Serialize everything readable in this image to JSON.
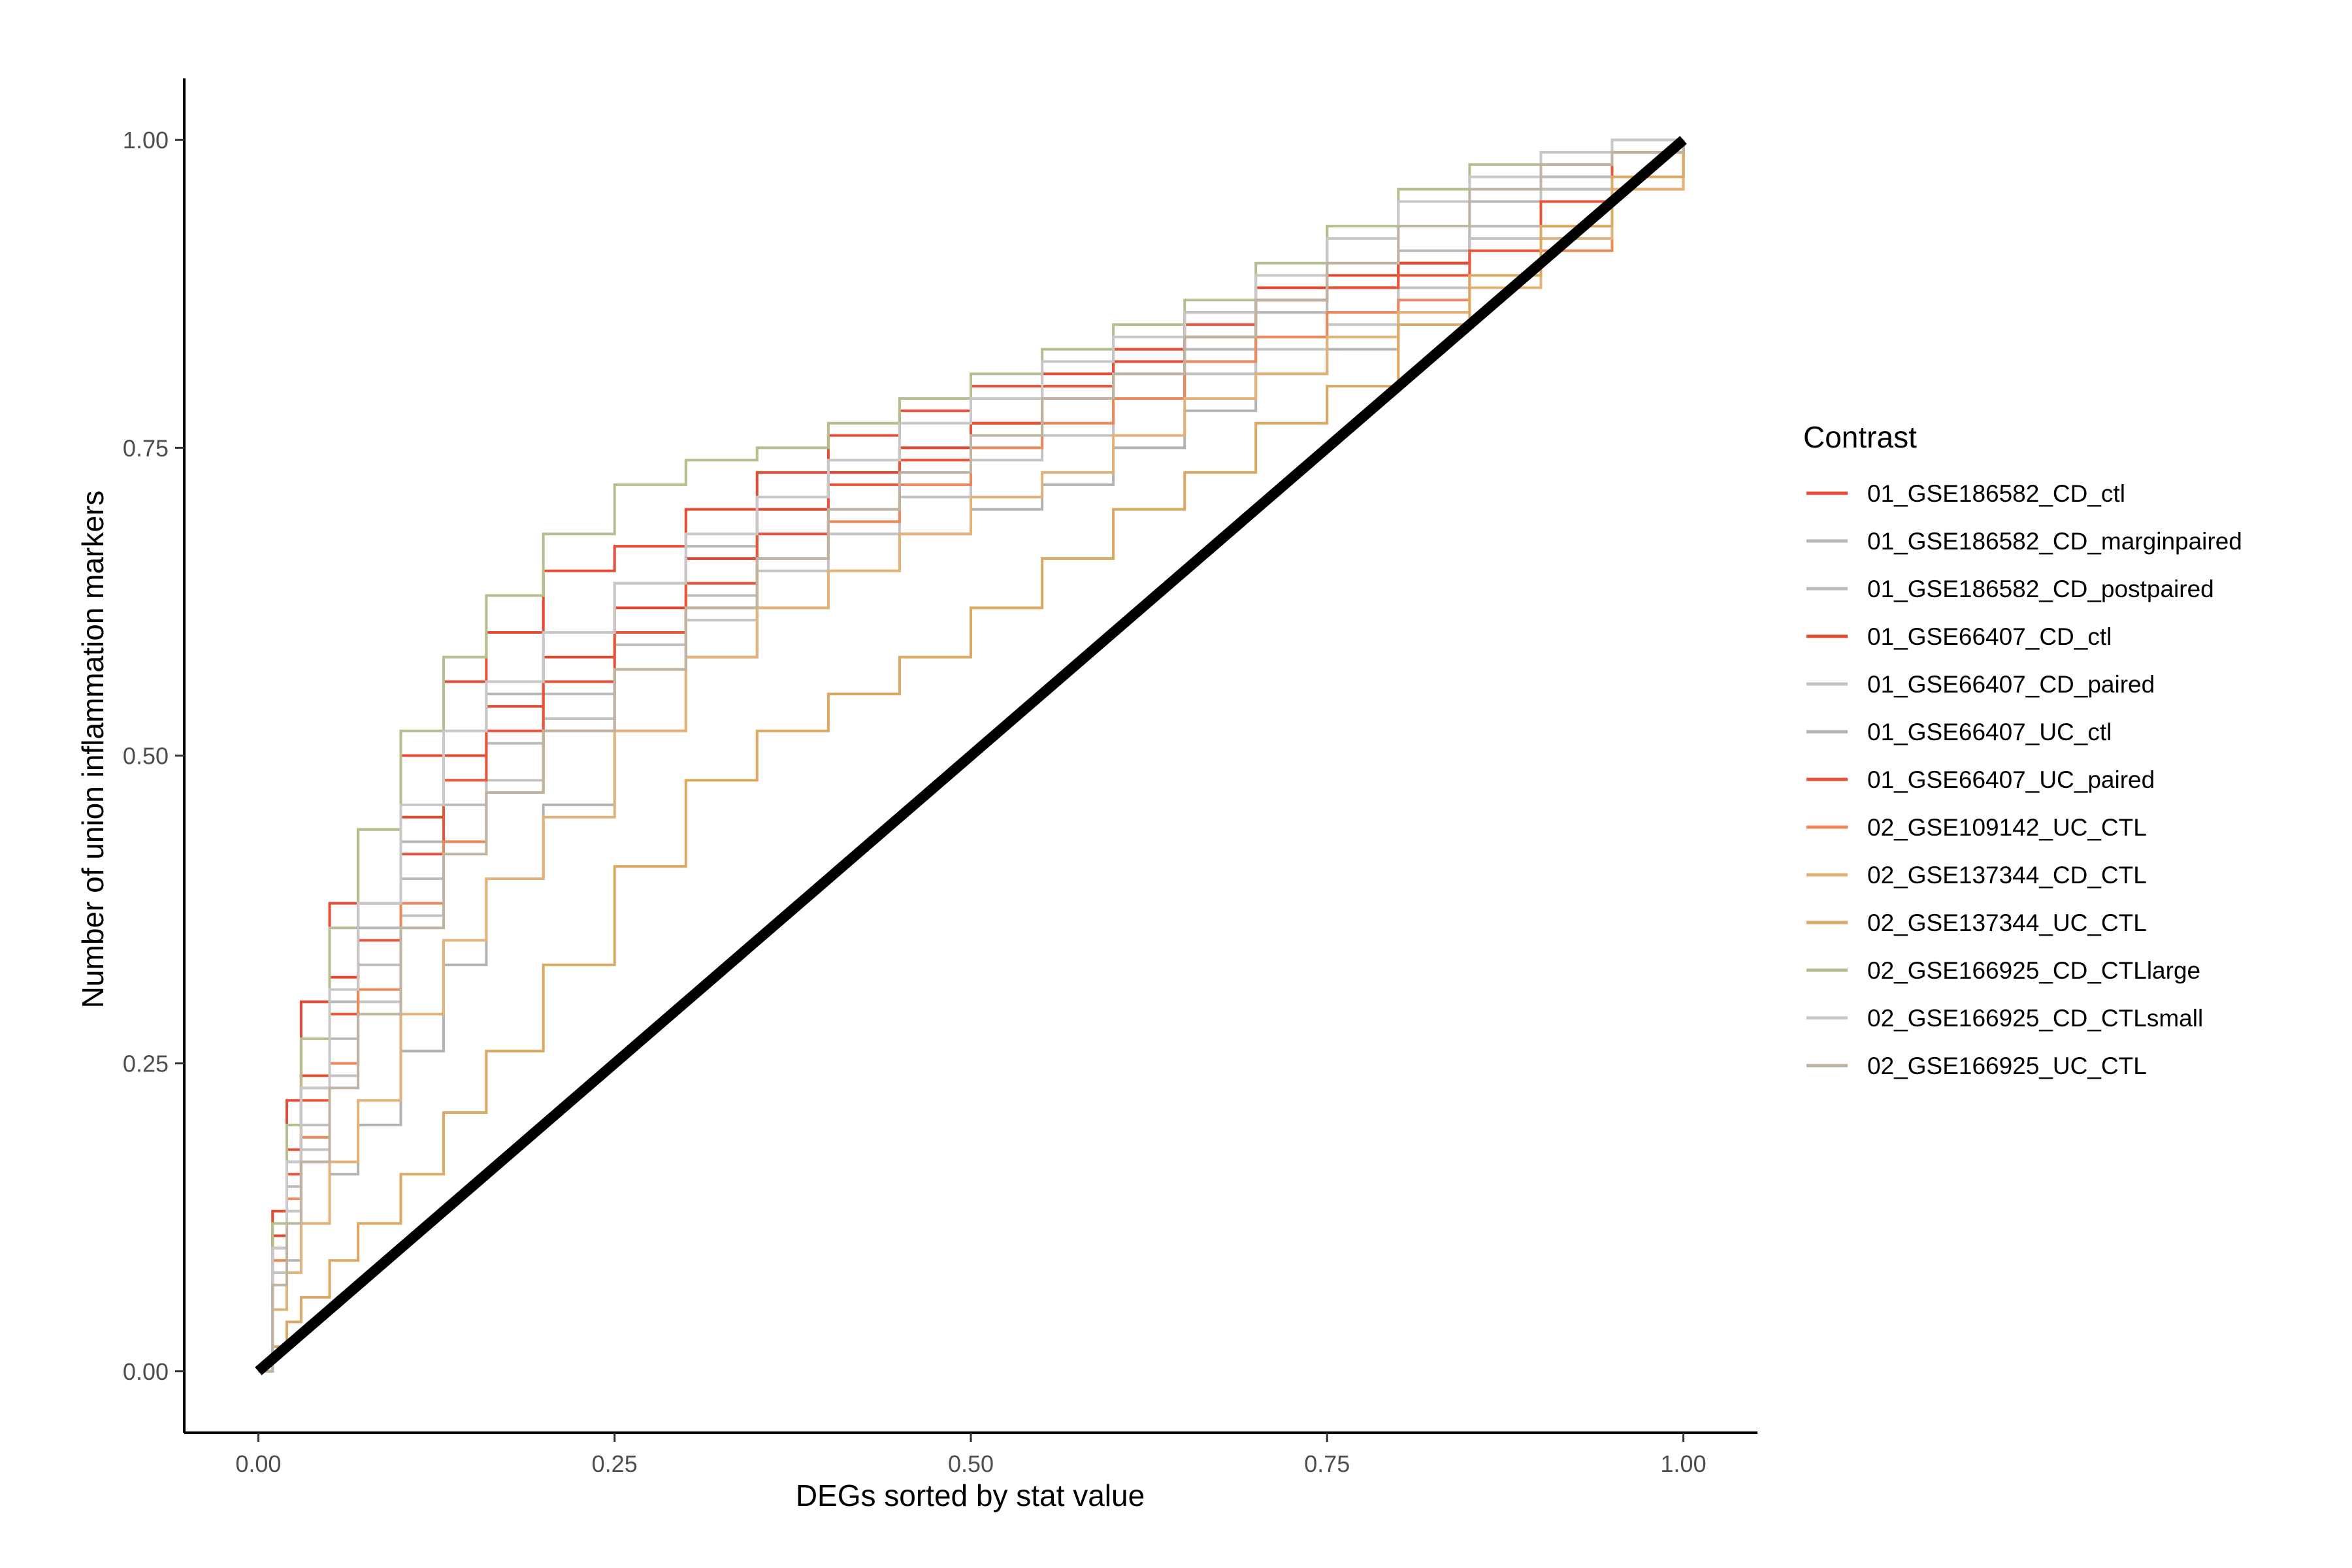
{
  "chart_data": {
    "type": "line",
    "title": "",
    "xlabel": "DEGs sorted by stat value",
    "ylabel": "Number of union inflammation markers",
    "xlim": [
      -0.052,
      1.052
    ],
    "ylim": [
      -0.05,
      1.05
    ],
    "x_ticks": [
      0,
      0.25,
      0.5,
      0.75,
      1
    ],
    "x_tick_labels": [
      "0.00",
      "0.25",
      "0.50",
      "0.75",
      "1.00"
    ],
    "y_ticks": [
      0,
      0.25,
      0.5,
      0.75,
      1
    ],
    "y_tick_labels": [
      "0.00",
      "0.25",
      "0.50",
      "0.75",
      "1.00"
    ],
    "grid": false,
    "legend": {
      "title": "Contrast",
      "position": "right"
    },
    "reference_line": {
      "x": [
        0,
        1
      ],
      "y": [
        0,
        1
      ],
      "color": "#000000"
    },
    "series": [
      {
        "name": "01_GSE186582_CD_ctl",
        "color": "#e64b35",
        "x": [
          0,
          0.01,
          0.02,
          0.03,
          0.05,
          0.07,
          0.1,
          0.13,
          0.16,
          0.2,
          0.25,
          0.3,
          0.35,
          0.4,
          0.45,
          0.5,
          0.55,
          0.6,
          0.65,
          0.7,
          0.75,
          0.8,
          0.85,
          0.9,
          0.95,
          1
        ],
        "y": [
          0,
          0.13,
          0.22,
          0.3,
          0.38,
          0.44,
          0.5,
          0.56,
          0.6,
          0.65,
          0.67,
          0.7,
          0.73,
          0.76,
          0.78,
          0.8,
          0.81,
          0.82,
          0.84,
          0.87,
          0.88,
          0.9,
          0.93,
          0.97,
          0.99,
          1
        ]
      },
      {
        "name": "01_GSE186582_CD_marginpaired",
        "color": "#b8b8b8",
        "x": [
          0,
          0.01,
          0.02,
          0.03,
          0.05,
          0.07,
          0.1,
          0.13,
          0.16,
          0.2,
          0.25,
          0.3,
          0.35,
          0.4,
          0.45,
          0.5,
          0.55,
          0.6,
          0.65,
          0.7,
          0.75,
          0.8,
          0.85,
          0.9,
          0.95,
          1
        ],
        "y": [
          0,
          0.1,
          0.17,
          0.23,
          0.3,
          0.36,
          0.43,
          0.5,
          0.55,
          0.6,
          0.64,
          0.67,
          0.7,
          0.73,
          0.75,
          0.77,
          0.79,
          0.81,
          0.83,
          0.86,
          0.88,
          0.91,
          0.95,
          0.98,
          0.99,
          1
        ]
      },
      {
        "name": "01_GSE186582_CD_postpaired",
        "color": "#bdbdbd",
        "x": [
          0,
          0.01,
          0.02,
          0.03,
          0.05,
          0.07,
          0.1,
          0.13,
          0.16,
          0.2,
          0.25,
          0.3,
          0.35,
          0.4,
          0.45,
          0.5,
          0.55,
          0.6,
          0.65,
          0.7,
          0.75,
          0.8,
          0.85,
          0.9,
          0.95,
          1
        ],
        "y": [
          0,
          0.09,
          0.15,
          0.2,
          0.27,
          0.33,
          0.4,
          0.46,
          0.51,
          0.55,
          0.59,
          0.63,
          0.66,
          0.69,
          0.72,
          0.75,
          0.77,
          0.79,
          0.81,
          0.84,
          0.86,
          0.89,
          0.93,
          0.97,
          0.99,
          1
        ]
      },
      {
        "name": "01_GSE66407_CD_ctl",
        "color": "#e04a2f",
        "x": [
          0,
          0.01,
          0.02,
          0.03,
          0.05,
          0.07,
          0.1,
          0.13,
          0.16,
          0.2,
          0.25,
          0.3,
          0.35,
          0.4,
          0.45,
          0.5,
          0.55,
          0.6,
          0.65,
          0.7,
          0.75,
          0.8,
          0.85,
          0.9,
          0.95,
          1
        ],
        "y": [
          0,
          0.11,
          0.18,
          0.24,
          0.32,
          0.38,
          0.45,
          0.5,
          0.54,
          0.58,
          0.62,
          0.66,
          0.7,
          0.73,
          0.75,
          0.77,
          0.8,
          0.83,
          0.86,
          0.88,
          0.89,
          0.9,
          0.92,
          0.96,
          0.99,
          1
        ]
      },
      {
        "name": "01_GSE66407_CD_paired",
        "color": "#c3c3c3",
        "x": [
          0,
          0.01,
          0.02,
          0.03,
          0.05,
          0.07,
          0.1,
          0.13,
          0.16,
          0.2,
          0.25,
          0.3,
          0.35,
          0.4,
          0.45,
          0.5,
          0.55,
          0.6,
          0.65,
          0.7,
          0.75,
          0.8,
          0.85,
          0.9,
          0.95,
          1
        ],
        "y": [
          0,
          0.08,
          0.13,
          0.18,
          0.24,
          0.3,
          0.37,
          0.43,
          0.48,
          0.53,
          0.57,
          0.61,
          0.65,
          0.68,
          0.71,
          0.74,
          0.76,
          0.79,
          0.81,
          0.83,
          0.85,
          0.88,
          0.92,
          0.96,
          0.99,
          1
        ]
      },
      {
        "name": "01_GSE66407_UC_ctl",
        "color": "#b3b3b3",
        "x": [
          0,
          0.01,
          0.02,
          0.03,
          0.05,
          0.07,
          0.1,
          0.13,
          0.16,
          0.2,
          0.25,
          0.3,
          0.35,
          0.4,
          0.45,
          0.5,
          0.55,
          0.6,
          0.65,
          0.7,
          0.75,
          0.8,
          0.85,
          0.9,
          0.95,
          1
        ],
        "y": [
          0,
          0.05,
          0.09,
          0.12,
          0.16,
          0.2,
          0.26,
          0.33,
          0.4,
          0.46,
          0.52,
          0.58,
          0.62,
          0.65,
          0.68,
          0.7,
          0.72,
          0.75,
          0.78,
          0.81,
          0.83,
          0.86,
          0.89,
          0.93,
          0.97,
          1
        ]
      },
      {
        "name": "01_GSE66407_UC_paired",
        "color": "#e8553a",
        "x": [
          0,
          0.01,
          0.02,
          0.03,
          0.05,
          0.07,
          0.1,
          0.13,
          0.16,
          0.2,
          0.25,
          0.3,
          0.35,
          0.4,
          0.45,
          0.5,
          0.55,
          0.6,
          0.65,
          0.7,
          0.75,
          0.8,
          0.85,
          0.9,
          0.95,
          1
        ],
        "y": [
          0,
          0.1,
          0.16,
          0.22,
          0.29,
          0.35,
          0.42,
          0.48,
          0.52,
          0.56,
          0.6,
          0.64,
          0.68,
          0.72,
          0.74,
          0.77,
          0.8,
          0.83,
          0.85,
          0.87,
          0.88,
          0.89,
          0.91,
          0.95,
          0.99,
          1
        ]
      },
      {
        "name": "02_GSE109142_UC_CTL",
        "color": "#ea8a5c",
        "x": [
          0,
          0.01,
          0.02,
          0.03,
          0.05,
          0.07,
          0.1,
          0.13,
          0.16,
          0.2,
          0.25,
          0.3,
          0.35,
          0.4,
          0.45,
          0.5,
          0.55,
          0.6,
          0.65,
          0.7,
          0.75,
          0.8,
          0.85,
          0.9,
          0.95,
          1
        ],
        "y": [
          0,
          0.09,
          0.14,
          0.19,
          0.25,
          0.31,
          0.38,
          0.43,
          0.47,
          0.52,
          0.57,
          0.62,
          0.66,
          0.69,
          0.72,
          0.75,
          0.77,
          0.79,
          0.82,
          0.84,
          0.86,
          0.87,
          0.89,
          0.91,
          0.96,
          1
        ]
      },
      {
        "name": "02_GSE137344_CD_CTL",
        "color": "#e2b27a",
        "x": [
          0,
          0.01,
          0.02,
          0.03,
          0.05,
          0.07,
          0.1,
          0.13,
          0.16,
          0.2,
          0.25,
          0.3,
          0.35,
          0.4,
          0.45,
          0.5,
          0.55,
          0.6,
          0.65,
          0.7,
          0.75,
          0.8,
          0.85,
          0.9,
          0.95,
          1
        ],
        "y": [
          0,
          0.05,
          0.08,
          0.12,
          0.17,
          0.22,
          0.29,
          0.35,
          0.4,
          0.45,
          0.52,
          0.58,
          0.62,
          0.65,
          0.68,
          0.71,
          0.73,
          0.76,
          0.79,
          0.81,
          0.84,
          0.86,
          0.88,
          0.92,
          0.96,
          1
        ]
      },
      {
        "name": "02_GSE137344_UC_CTL",
        "color": "#dca964",
        "x": [
          0,
          0.01,
          0.02,
          0.03,
          0.05,
          0.07,
          0.1,
          0.13,
          0.16,
          0.2,
          0.25,
          0.3,
          0.35,
          0.4,
          0.45,
          0.5,
          0.55,
          0.6,
          0.65,
          0.7,
          0.75,
          0.8,
          0.85,
          0.9,
          0.95,
          1
        ],
        "y": [
          0,
          0.02,
          0.04,
          0.06,
          0.09,
          0.12,
          0.16,
          0.21,
          0.26,
          0.33,
          0.41,
          0.48,
          0.52,
          0.55,
          0.58,
          0.62,
          0.66,
          0.7,
          0.73,
          0.77,
          0.8,
          0.85,
          0.89,
          0.93,
          0.97,
          1
        ]
      },
      {
        "name": "02_GSE166925_CD_CTLlarge",
        "color": "#b5be8f",
        "x": [
          0,
          0.01,
          0.02,
          0.03,
          0.05,
          0.07,
          0.1,
          0.13,
          0.16,
          0.2,
          0.25,
          0.3,
          0.35,
          0.4,
          0.45,
          0.5,
          0.55,
          0.6,
          0.65,
          0.7,
          0.75,
          0.8,
          0.85,
          0.9,
          0.95,
          1
        ],
        "y": [
          0,
          0.12,
          0.2,
          0.27,
          0.36,
          0.44,
          0.52,
          0.58,
          0.63,
          0.68,
          0.72,
          0.74,
          0.75,
          0.77,
          0.79,
          0.81,
          0.83,
          0.85,
          0.87,
          0.9,
          0.93,
          0.96,
          0.98,
          0.99,
          1,
          1
        ]
      },
      {
        "name": "02_GSE166925_CD_CTLsmall",
        "color": "#c8c8c8",
        "x": [
          0,
          0.01,
          0.02,
          0.03,
          0.05,
          0.07,
          0.1,
          0.13,
          0.16,
          0.2,
          0.25,
          0.3,
          0.35,
          0.4,
          0.45,
          0.5,
          0.55,
          0.6,
          0.65,
          0.7,
          0.75,
          0.8,
          0.85,
          0.9,
          0.95,
          1
        ],
        "y": [
          0,
          0.1,
          0.17,
          0.23,
          0.31,
          0.38,
          0.46,
          0.52,
          0.56,
          0.6,
          0.64,
          0.68,
          0.71,
          0.74,
          0.77,
          0.79,
          0.82,
          0.84,
          0.86,
          0.89,
          0.92,
          0.95,
          0.97,
          0.99,
          1,
          1
        ]
      },
      {
        "name": "02_GSE166925_UC_CTL",
        "color": "#bfb3a1",
        "x": [
          0,
          0.01,
          0.02,
          0.03,
          0.05,
          0.07,
          0.1,
          0.13,
          0.16,
          0.2,
          0.25,
          0.3,
          0.35,
          0.4,
          0.45,
          0.5,
          0.55,
          0.6,
          0.65,
          0.7,
          0.75,
          0.8,
          0.85,
          0.9,
          0.95,
          1
        ],
        "y": [
          0,
          0.07,
          0.12,
          0.17,
          0.23,
          0.29,
          0.36,
          0.42,
          0.47,
          0.52,
          0.57,
          0.62,
          0.66,
          0.7,
          0.73,
          0.76,
          0.79,
          0.81,
          0.84,
          0.87,
          0.9,
          0.93,
          0.96,
          0.98,
          0.99,
          1
        ]
      }
    ]
  }
}
